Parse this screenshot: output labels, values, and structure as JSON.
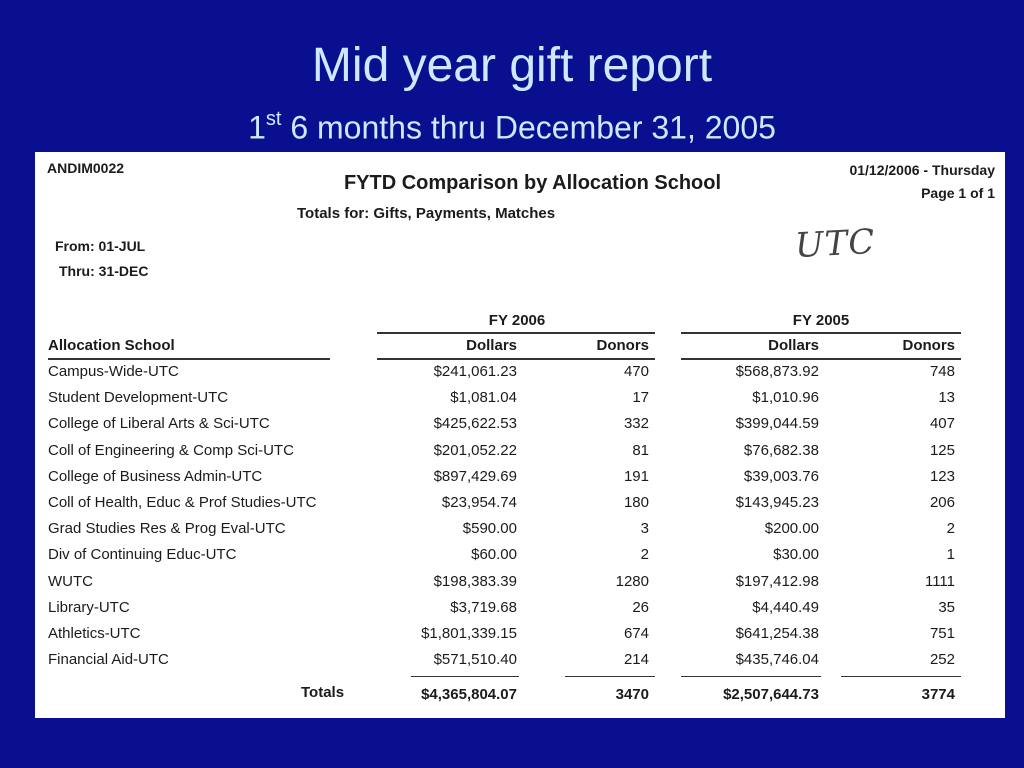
{
  "slide": {
    "title": "Mid year gift report",
    "subtitle_sup_prefix": "1",
    "subtitle_sup": "st",
    "subtitle_rest": " 6 months thru December 31, 2005"
  },
  "report": {
    "id": "ANDIM0022",
    "title": "FYTD Comparison by Allocation School",
    "date": "01/12/2006 - Thursday",
    "page": "Page 1 of 1",
    "totals_for": "Totals for:  Gifts, Payments, Matches",
    "from": "From: 01-JUL",
    "thru": "Thru: 31-DEC",
    "handwritten_note": "UTC"
  },
  "table": {
    "groups": [
      "FY 2006",
      "FY 2005"
    ],
    "headers": {
      "school": "Allocation School",
      "dollars_2006": "Dollars",
      "donors_2006": "Donors",
      "dollars_2005": "Dollars",
      "donors_2005": "Donors"
    },
    "rows": [
      {
        "school": "Campus-Wide-UTC",
        "d06": "$241,061.23",
        "n06": "470",
        "d05": "$568,873.92",
        "n05": "748"
      },
      {
        "school": "Student Development-UTC",
        "d06": "$1,081.04",
        "n06": "17",
        "d05": "$1,010.96",
        "n05": "13"
      },
      {
        "school": "College of Liberal Arts & Sci-UTC",
        "d06": "$425,622.53",
        "n06": "332",
        "d05": "$399,044.59",
        "n05": "407"
      },
      {
        "school": "Coll of Engineering & Comp Sci-UTC",
        "d06": "$201,052.22",
        "n06": "81",
        "d05": "$76,682.38",
        "n05": "125"
      },
      {
        "school": "College of Business Admin-UTC",
        "d06": "$897,429.69",
        "n06": "191",
        "d05": "$39,003.76",
        "n05": "123"
      },
      {
        "school": "Coll of Health, Educ & Prof Studies-UTC",
        "d06": "$23,954.74",
        "n06": "180",
        "d05": "$143,945.23",
        "n05": "206"
      },
      {
        "school": "Grad Studies Res & Prog Eval-UTC",
        "d06": "$590.00",
        "n06": "3",
        "d05": "$200.00",
        "n05": "2"
      },
      {
        "school": "Div of Continuing Educ-UTC",
        "d06": "$60.00",
        "n06": "2",
        "d05": "$30.00",
        "n05": "1"
      },
      {
        "school": "WUTC",
        "d06": "$198,383.39",
        "n06": "1280",
        "d05": "$197,412.98",
        "n05": "1111"
      },
      {
        "school": "Library-UTC",
        "d06": "$3,719.68",
        "n06": "26",
        "d05": "$4,440.49",
        "n05": "35"
      },
      {
        "school": "Athletics-UTC",
        "d06": "$1,801,339.15",
        "n06": "674",
        "d05": "$641,254.38",
        "n05": "751"
      },
      {
        "school": "Financial Aid-UTC",
        "d06": "$571,510.40",
        "n06": "214",
        "d05": "$435,746.04",
        "n05": "252"
      }
    ],
    "totals": {
      "label": "Totals",
      "d06": "$4,365,804.07",
      "n06": "3470",
      "d05": "$2,507,644.73",
      "n05": "3774"
    }
  },
  "colors": {
    "background": "#0a0f8f",
    "title_text": "#cfe8ff",
    "paper": "#ffffff"
  }
}
